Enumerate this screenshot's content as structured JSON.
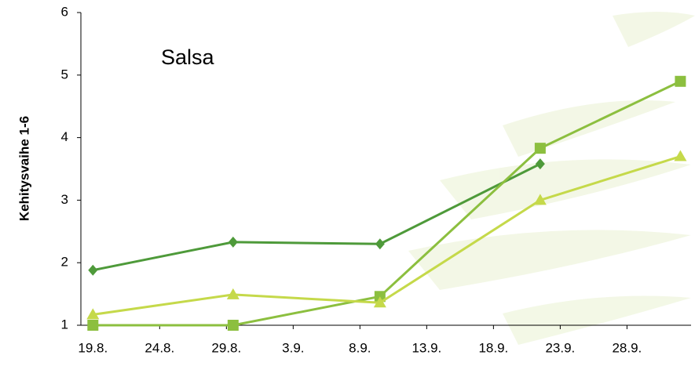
{
  "chart_data": {
    "type": "line",
    "annotation": "Salsa",
    "y_label": "Kehitysvaihe 1-6",
    "x": [
      0,
      10.5,
      21.5,
      33.5,
      44
    ],
    "xlim": [
      -0.9,
      44.8
    ],
    "xticks": [
      {
        "value": 0,
        "label": "19.8."
      },
      {
        "value": 5,
        "label": "24.8."
      },
      {
        "value": 10,
        "label": "29.8."
      },
      {
        "value": 15,
        "label": "3.9."
      },
      {
        "value": 20,
        "label": "8.9."
      },
      {
        "value": 25,
        "label": "13.9."
      },
      {
        "value": 30,
        "label": "18.9."
      },
      {
        "value": 35,
        "label": "23.9."
      },
      {
        "value": 40,
        "label": "28.9."
      }
    ],
    "ylim": [
      1,
      6
    ],
    "yticks": [
      1,
      2,
      3,
      4,
      5,
      6
    ],
    "series": [
      {
        "color": "#4e9a3a",
        "marker": "diamond",
        "values": [
          1.88,
          2.33,
          2.3,
          3.58,
          null
        ]
      },
      {
        "color": "#8cbf3f",
        "marker": "square",
        "values": [
          1.0,
          1.0,
          1.46,
          3.83,
          4.9
        ]
      },
      {
        "color": "#c5d94a",
        "marker": "triangle",
        "values": [
          1.17,
          1.49,
          1.36,
          3.0,
          3.7
        ]
      }
    ]
  }
}
